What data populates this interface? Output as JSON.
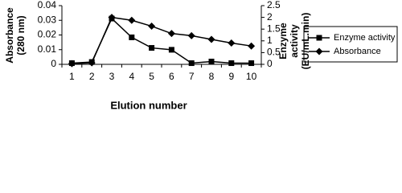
{
  "chart_data": {
    "type": "line",
    "y_label": "Absorbance (280 nm)",
    "y2_label": "Enzyme activity (EU/mL.min)",
    "x_label": "Elution number",
    "categories": [
      "1",
      "2",
      "3",
      "4",
      "5",
      "6",
      "7",
      "8",
      "9",
      "10"
    ],
    "ylim": [
      0,
      0.04
    ],
    "yticks": [
      0,
      0.01,
      0.02,
      0.03,
      0.04
    ],
    "y2lim": [
      0,
      2.5
    ],
    "y2ticks": [
      0,
      0.5,
      1,
      1.5,
      2,
      2.5
    ],
    "series": [
      {
        "name": "Enzyme activity",
        "color": "#000000",
        "marker": "square",
        "axis": "y2",
        "values": [
          0.05,
          0.1,
          1.95,
          1.15,
          0.7,
          0.62,
          0.05,
          0.12,
          0.05,
          0.05
        ]
      },
      {
        "name": "Absorbance",
        "color": "#000000",
        "marker": "diamond",
        "values": [
          0.0005,
          0.001,
          0.032,
          0.03,
          0.026,
          0.021,
          0.0195,
          0.017,
          0.0145,
          0.0125
        ]
      }
    ]
  }
}
